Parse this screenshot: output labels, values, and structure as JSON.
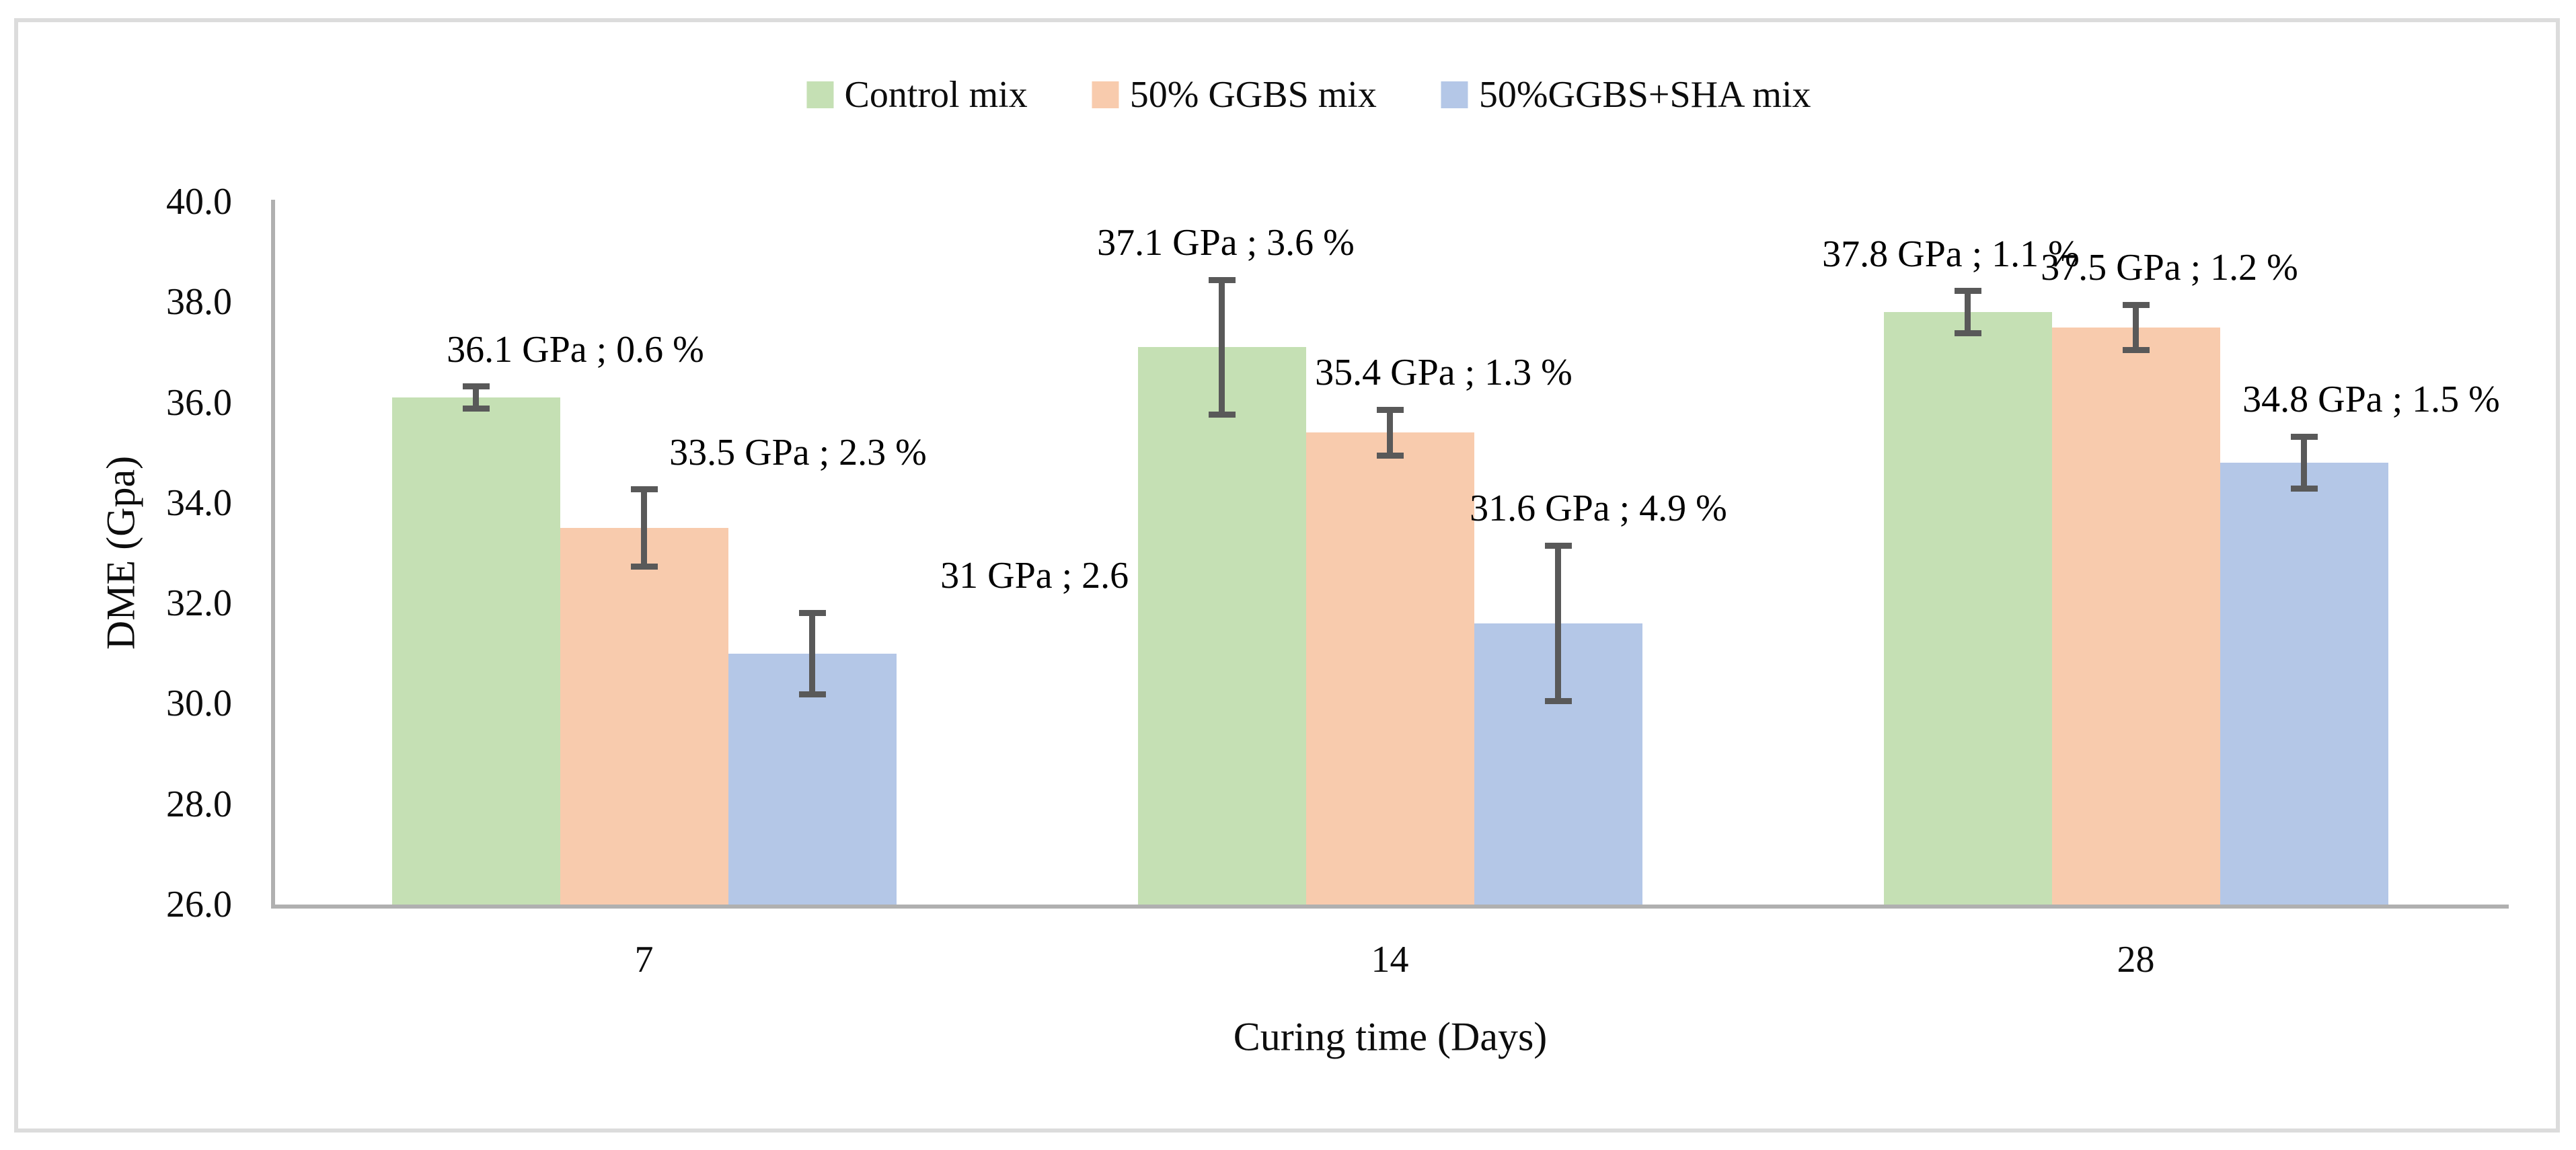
{
  "figure": {
    "background_color": "#ffffff",
    "border_color": "#dcdcdc"
  },
  "chart_data": {
    "type": "bar",
    "title": "",
    "xlabel": "Curing time (Days)",
    "ylabel": "DME (Gpa)",
    "categories": [
      "7",
      "14",
      "28"
    ],
    "y_axis": {
      "min": 26.0,
      "max": 40.0,
      "step": 2.0,
      "tick_labels": [
        "26.0",
        "28.0",
        "30.0",
        "32.0",
        "34.0",
        "36.0",
        "38.0",
        "40.0"
      ]
    },
    "grid": false,
    "legend_position": "top-center",
    "axis_line_color": "#b0b0b0",
    "error_bar_color": "#595959",
    "series": [
      {
        "name": "Control mix",
        "color": "#c5e0b4",
        "values": [
          36.1,
          37.1,
          37.8
        ],
        "error_pct": [
          0.6,
          3.6,
          1.1
        ],
        "error_gpa": [
          0.22,
          1.34,
          0.42
        ],
        "data_labels": [
          "36.1 GPa ; 0.6 %",
          "37.1 GPa ; 3.6 %",
          "37.8 GPa ; 1.1 %"
        ]
      },
      {
        "name": "50% GGBS mix",
        "color": "#f8cbad",
        "values": [
          33.5,
          35.4,
          37.5
        ],
        "error_pct": [
          2.3,
          1.3,
          1.2
        ],
        "error_gpa": [
          0.77,
          0.46,
          0.45
        ],
        "data_labels": [
          "33.5 GPa ; 2.3 %",
          "35.4 GPa ; 1.3 %",
          "37.5 GPa ; 1.2 %"
        ]
      },
      {
        "name": "50%GGBS+SHA mix",
        "color": "#b4c7e7",
        "values": [
          31.0,
          31.6,
          34.8
        ],
        "error_pct": [
          2.6,
          4.9,
          1.5
        ],
        "error_gpa": [
          0.81,
          1.55,
          0.52
        ],
        "data_labels": [
          "31 GPa ; 2.6 %",
          "31.6 GPa ; 4.9 %",
          "34.8 GPa ; 1.5 %"
        ]
      }
    ]
  }
}
